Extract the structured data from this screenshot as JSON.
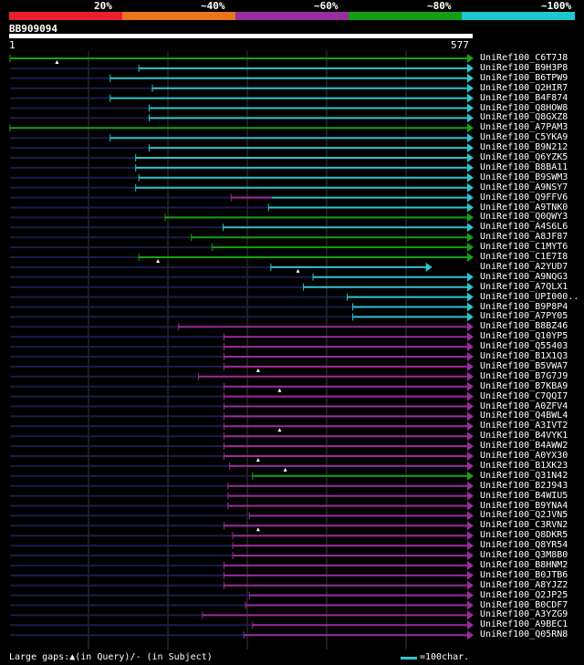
{
  "legend": {
    "segments": [
      {
        "label": "20%",
        "color": "#e8202f"
      },
      {
        "label": "~40%",
        "color": "#e8761a"
      },
      {
        "label": "~60%",
        "color": "#9b2c9e"
      },
      {
        "label": "~80%",
        "color": "#12a012"
      },
      {
        "label": "~100%",
        "color": "#1fc8cf"
      }
    ]
  },
  "query": {
    "id": "BB909094",
    "start": "1",
    "end": "577",
    "length": 577
  },
  "colors": {
    "cyan": "#2bc5cf",
    "green": "#16a016",
    "purple": "#9b2c9e",
    "grid": "#3a3a3a",
    "pre": "#1b1e4a"
  },
  "hits": [
    {
      "name": "UniRef100_C6T7J8",
      "segs": [
        [
          1,
          577,
          "green"
        ]
      ],
      "gap": 60
    },
    {
      "name": "UniRef100_B9H3P8",
      "segs": [
        [
          163,
          577,
          "cyan"
        ]
      ]
    },
    {
      "name": "UniRef100_B6TPW9",
      "segs": [
        [
          127,
          577,
          "cyan"
        ]
      ]
    },
    {
      "name": "UniRef100_Q2HIR7",
      "segs": [
        [
          180,
          577,
          "cyan"
        ]
      ]
    },
    {
      "name": "UniRef100_B4F874",
      "segs": [
        [
          127,
          577,
          "cyan"
        ]
      ]
    },
    {
      "name": "UniRef100_Q8HOW8",
      "segs": [
        [
          176,
          577,
          "cyan"
        ]
      ]
    },
    {
      "name": "UniRef100_Q8GXZ8",
      "segs": [
        [
          176,
          577,
          "cyan"
        ]
      ]
    },
    {
      "name": "UniRef100_A7PAM3",
      "segs": [
        [
          1,
          577,
          "green"
        ]
      ]
    },
    {
      "name": "UniRef100_C5YKA9",
      "segs": [
        [
          127,
          577,
          "cyan"
        ]
      ]
    },
    {
      "name": "UniRef100_B9N212",
      "segs": [
        [
          176,
          577,
          "cyan"
        ]
      ]
    },
    {
      "name": "UniRef100_Q6YZK5",
      "segs": [
        [
          159,
          577,
          "cyan"
        ]
      ]
    },
    {
      "name": "UniRef100_B8BA11",
      "segs": [
        [
          159,
          577,
          "cyan"
        ]
      ]
    },
    {
      "name": "UniRef100_B9SWM3",
      "segs": [
        [
          163,
          577,
          "cyan"
        ]
      ]
    },
    {
      "name": "UniRef100_A9NSY7",
      "segs": [
        [
          159,
          577,
          "cyan"
        ]
      ]
    },
    {
      "name": "UniRef100_Q9FFV6",
      "segs": [
        [
          279,
          330,
          "purple"
        ],
        [
          330,
          577,
          "cyan"
        ]
      ]
    },
    {
      "name": "UniRef100_A9TNK0",
      "segs": [
        [
          326,
          577,
          "cyan"
        ]
      ]
    },
    {
      "name": "UniRef100_Q0QWY3",
      "segs": [
        [
          196,
          577,
          "green"
        ]
      ]
    },
    {
      "name": "UniRef100_A4S6L6",
      "segs": [
        [
          269,
          577,
          "cyan"
        ]
      ]
    },
    {
      "name": "UniRef100_A8JF87",
      "segs": [
        [
          229,
          577,
          "green"
        ]
      ]
    },
    {
      "name": "UniRef100_C1MYT6",
      "segs": [
        [
          255,
          577,
          "green"
        ]
      ]
    },
    {
      "name": "UniRef100_C1E7I8",
      "segs": [
        [
          163,
          577,
          "green"
        ]
      ],
      "gap": 187
    },
    {
      "name": "UniRef100_A2YUD7",
      "segs": [
        [
          329,
          525,
          "cyan"
        ]
      ],
      "gap": 363
    },
    {
      "name": "UniRef100_A9NQG3",
      "segs": [
        [
          382,
          577,
          "cyan"
        ]
      ]
    },
    {
      "name": "UniRef100_A7QLX1",
      "segs": [
        [
          370,
          577,
          "cyan"
        ]
      ]
    },
    {
      "name": "UniRef100_UPI000..",
      "segs": [
        [
          425,
          577,
          "cyan"
        ]
      ]
    },
    {
      "name": "UniRef100_B9P8P4",
      "segs": [
        [
          432,
          577,
          "cyan"
        ]
      ]
    },
    {
      "name": "UniRef100_A7PY05",
      "segs": [
        [
          432,
          577,
          "cyan"
        ]
      ]
    },
    {
      "name": "UniRef100_B8BZ46",
      "segs": [
        [
          213,
          577,
          "purple"
        ]
      ]
    },
    {
      "name": "UniRef100_Q10YP5",
      "segs": [
        [
          270,
          577,
          "purple"
        ]
      ]
    },
    {
      "name": "UniRef100_Q55403",
      "segs": [
        [
          270,
          577,
          "purple"
        ]
      ]
    },
    {
      "name": "UniRef100_B1X1Q3",
      "segs": [
        [
          270,
          577,
          "purple"
        ]
      ]
    },
    {
      "name": "UniRef100_B5VWA7",
      "segs": [
        [
          270,
          577,
          "purple"
        ]
      ],
      "gap": 313
    },
    {
      "name": "UniRef100_B7G7J9",
      "segs": [
        [
          238,
          577,
          "purple"
        ]
      ]
    },
    {
      "name": "UniRef100_B7KBA9",
      "segs": [
        [
          270,
          577,
          "purple"
        ]
      ],
      "gap": 340
    },
    {
      "name": "UniRef100_C7QQI7",
      "segs": [
        [
          270,
          577,
          "purple"
        ]
      ]
    },
    {
      "name": "UniRef100_A0ZFV4",
      "segs": [
        [
          270,
          577,
          "purple"
        ]
      ]
    },
    {
      "name": "UniRef100_Q4BWL4",
      "segs": [
        [
          270,
          577,
          "purple"
        ]
      ]
    },
    {
      "name": "UniRef100_A3IVT2",
      "segs": [
        [
          270,
          577,
          "purple"
        ]
      ],
      "gap": 340
    },
    {
      "name": "UniRef100_B4VYK1",
      "segs": [
        [
          270,
          577,
          "purple"
        ]
      ]
    },
    {
      "name": "UniRef100_B4AWW2",
      "segs": [
        [
          270,
          577,
          "purple"
        ]
      ]
    },
    {
      "name": "UniRef100_A0YX30",
      "segs": [
        [
          270,
          577,
          "purple"
        ]
      ],
      "gap": 313
    },
    {
      "name": "UniRef100_B1XK23",
      "segs": [
        [
          277,
          577,
          "purple"
        ]
      ],
      "gap": 347
    },
    {
      "name": "UniRef100_Q31N42",
      "segs": [
        [
          306,
          577,
          "green"
        ]
      ]
    },
    {
      "name": "UniRef100_B2J943",
      "segs": [
        [
          275,
          577,
          "purple"
        ]
      ]
    },
    {
      "name": "UniRef100_B4WIU5",
      "segs": [
        [
          275,
          577,
          "purple"
        ]
      ]
    },
    {
      "name": "UniRef100_B9YNA4",
      "segs": [
        [
          275,
          577,
          "purple"
        ]
      ]
    },
    {
      "name": "UniRef100_Q2JVN5",
      "segs": [
        [
          302,
          577,
          "purple"
        ]
      ]
    },
    {
      "name": "UniRef100_C3RVN2",
      "segs": [
        [
          270,
          577,
          "purple"
        ]
      ],
      "gap": 313
    },
    {
      "name": "UniRef100_Q8DKR5",
      "segs": [
        [
          281,
          577,
          "purple"
        ]
      ]
    },
    {
      "name": "UniRef100_Q8YR54",
      "segs": [
        [
          281,
          577,
          "purple"
        ]
      ]
    },
    {
      "name": "UniRef100_Q3M8B0",
      "segs": [
        [
          281,
          577,
          "purple"
        ]
      ]
    },
    {
      "name": "UniRef100_B8HNM2",
      "segs": [
        [
          270,
          577,
          "purple"
        ]
      ]
    },
    {
      "name": "UniRef100_B0JTB6",
      "segs": [
        [
          270,
          577,
          "purple"
        ]
      ]
    },
    {
      "name": "UniRef100_A8YJZ2",
      "segs": [
        [
          270,
          577,
          "purple"
        ]
      ]
    },
    {
      "name": "UniRef100_Q2JP25",
      "segs": [
        [
          302,
          577,
          "purple"
        ]
      ]
    },
    {
      "name": "UniRef100_B0CDF7",
      "segs": [
        [
          297,
          577,
          "purple"
        ]
      ]
    },
    {
      "name": "UniRef100_A3YZG9",
      "segs": [
        [
          243,
          577,
          "purple"
        ]
      ]
    },
    {
      "name": "UniRef100_A9BEC1",
      "segs": [
        [
          306,
          577,
          "purple"
        ]
      ]
    },
    {
      "name": "UniRef100_Q05RN8",
      "segs": [
        [
          295,
          577,
          "purple"
        ]
      ]
    }
  ],
  "footer": {
    "gaps_text": "Large gaps:▲(in Query)/- (in Subject)",
    "scale_text": "=100char."
  }
}
